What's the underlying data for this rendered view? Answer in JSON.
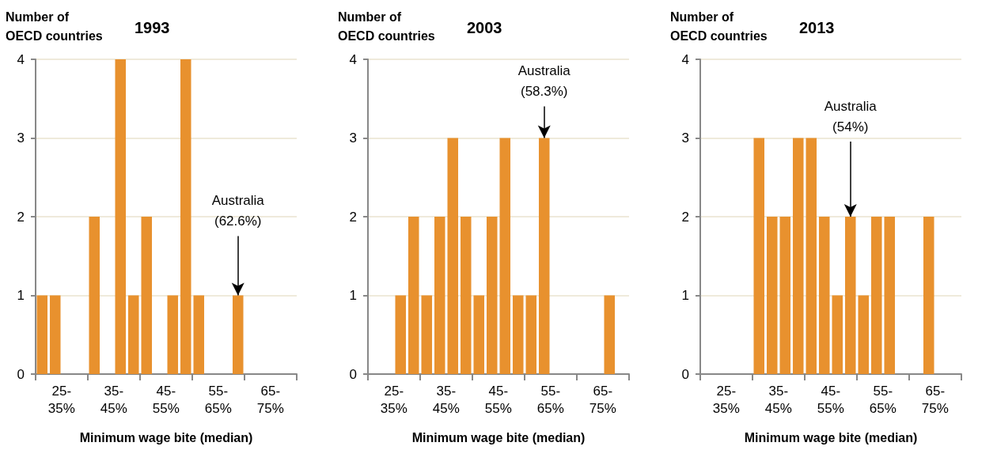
{
  "chart_data": [
    {
      "type": "bar",
      "title": "1993",
      "ylabel": "Number of\nOECD countries",
      "xlabel": "Minimum wage bite (median)",
      "color": "#e8912e",
      "categories": [
        null,
        "25-35%",
        null,
        null,
        null,
        "35-45%",
        null,
        null,
        null,
        "45-55%",
        null,
        null,
        null,
        "55-65%",
        null,
        null,
        null,
        "65-75%",
        null,
        null
      ],
      "values": [
        1,
        1,
        0,
        0,
        2,
        0,
        4,
        1,
        2,
        0,
        1,
        4,
        1,
        0,
        0,
        1,
        0,
        0,
        0,
        0
      ],
      "ylim": [
        0,
        4
      ],
      "yticks": [
        0,
        1,
        2,
        3,
        4
      ],
      "grid": "y",
      "annotations": [
        {
          "text": "Australia\n(62.6%)",
          "y": 1
        }
      ]
    },
    {
      "type": "bar",
      "title": "2003",
      "ylabel": "Number of\nOECD countries",
      "xlabel": "Minimum wage bite (median)",
      "color": "#e8912e",
      "categories": [
        null,
        "25-35%",
        null,
        null,
        null,
        "35-45%",
        null,
        null,
        null,
        "45-55%",
        null,
        null,
        null,
        "55-65%",
        null,
        null,
        null,
        "65-75%",
        null,
        null
      ],
      "values": [
        0,
        0,
        1,
        2,
        1,
        2,
        3,
        2,
        1,
        2,
        3,
        1,
        1,
        3,
        0,
        0,
        0,
        0,
        1,
        0
      ],
      "ylim": [
        0,
        4
      ],
      "yticks": [
        0,
        1,
        2,
        3,
        4
      ],
      "grid": "y",
      "annotations": [
        {
          "text": "Australia\n(58.3%)",
          "y": 3
        }
      ]
    },
    {
      "type": "bar",
      "title": "2013",
      "ylabel": "Number of\nOECD countries",
      "xlabel": "Minimum wage bite (median)",
      "color": "#e8912e",
      "categories": [
        null,
        "25-35%",
        null,
        null,
        null,
        "35-45%",
        null,
        null,
        null,
        "45-55%",
        null,
        null,
        null,
        "55-65%",
        null,
        null,
        null,
        "65-75%",
        null,
        null
      ],
      "values": [
        0,
        0,
        0,
        0,
        3,
        2,
        2,
        3,
        3,
        2,
        1,
        2,
        1,
        2,
        2,
        0,
        0,
        2,
        0,
        0
      ],
      "ylim": [
        0,
        4
      ],
      "yticks": [
        0,
        1,
        2,
        3,
        4
      ],
      "grid": "y",
      "annotations": [
        {
          "text": "Australia\n(54%)",
          "y": 2
        }
      ]
    }
  ]
}
